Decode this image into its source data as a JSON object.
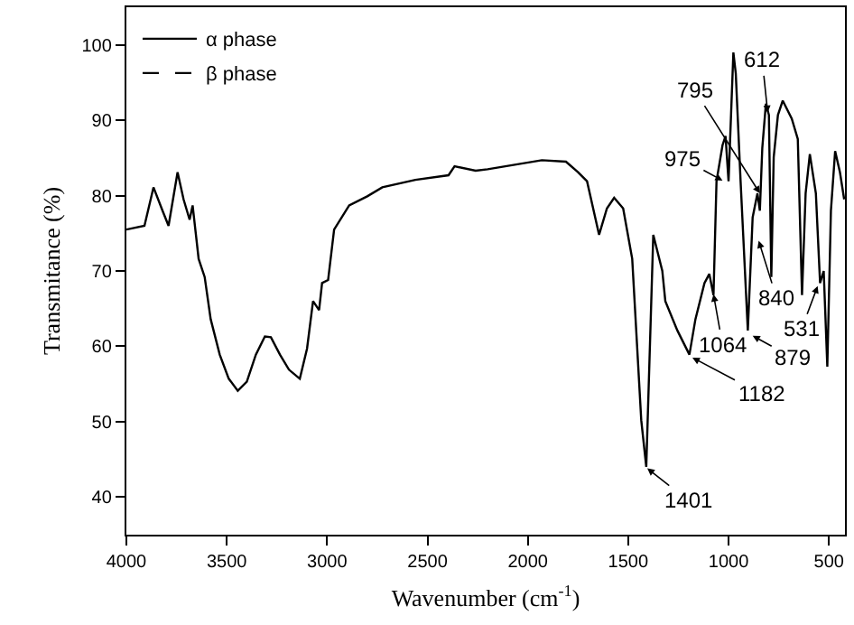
{
  "chart_data": {
    "type": "line",
    "xlabel": "Wavenumber (cm$^{-1}$)",
    "ylabel": "Transmitance (%)",
    "xlim": [
      4000,
      420
    ],
    "ylim": [
      35,
      105
    ],
    "xticks": [
      4000,
      3500,
      3000,
      2500,
      2000,
      1500,
      1000,
      500
    ],
    "yticks": [
      40,
      50,
      60,
      70,
      80,
      90,
      100
    ],
    "legend": "top left",
    "marker": "none",
    "x": [
      4000,
      3910,
      3865,
      3820,
      3790,
      3745,
      3715,
      3685,
      3670,
      3640,
      3610,
      3580,
      3535,
      3490,
      3445,
      3400,
      3355,
      3310,
      3280,
      3235,
      3190,
      3136,
      3100,
      3070,
      3040,
      3025,
      2995,
      2965,
      2890,
      2800,
      2725,
      2560,
      2395,
      2365,
      2260,
      2200,
      1930,
      1810,
      1750,
      1705,
      1645,
      1606,
      1570,
      1525,
      1480,
      1435,
      1410,
      1375,
      1330,
      1315,
      1255,
      1195,
      1165,
      1120,
      1096,
      1075,
      1060,
      1030,
      1015,
      1000,
      976,
      964,
      940,
      904,
      880,
      856,
      844,
      832,
      814,
      799,
      787,
      775,
      754,
      730,
      685,
      655,
      634,
      616,
      595,
      565,
      544,
      526,
      508,
      490,
      469,
      445,
      424
    ],
    "series": [
      {
        "name": "α phase",
        "color": "#000000",
        "line_style": "solid",
        "values": [
          75.5,
          76,
          81.1,
          78,
          76,
          83.1,
          79.5,
          76.8,
          78.7,
          71.6,
          69.2,
          63.6,
          58.9,
          55.7,
          54.1,
          55.3,
          58.9,
          61.3,
          61.2,
          58.9,
          56.9,
          55.7,
          59.7,
          66,
          64.8,
          68.4,
          68.8,
          75.5,
          78.7,
          79.9,
          81.1,
          82.1,
          82.7,
          83.9,
          83.3,
          83.5,
          84.7,
          84.5,
          83.1,
          81.9,
          74.8,
          78.3,
          79.7,
          78.3,
          71.6,
          50.2,
          44,
          74.8,
          70,
          66,
          62.1,
          58.9,
          63.6,
          68.4,
          69.6,
          66.8,
          81.9,
          86.7,
          87.9,
          81.9,
          99,
          96.2,
          81.9,
          62.1,
          77.1,
          80.3,
          78,
          86.3,
          92.2,
          90.7,
          69.2,
          85.1,
          90.7,
          92.6,
          90.2,
          87.5,
          66.8,
          80.3,
          85.5,
          80.3,
          68.4,
          70,
          57.3,
          78,
          85.9,
          83.1,
          79.5
        ]
      },
      {
        "name": "β phase",
        "color": "#000000",
        "line_style": "dashed",
        "values": [
          null,
          null,
          null,
          null,
          null,
          null,
          null,
          null,
          null,
          null,
          null,
          null,
          null,
          null,
          null,
          null,
          null,
          null,
          null,
          null,
          null,
          null,
          null,
          null,
          null,
          null,
          null,
          null,
          null,
          null,
          null,
          null,
          null,
          null,
          null,
          null,
          null,
          null,
          null,
          null,
          null,
          null,
          null,
          null,
          null,
          null,
          null,
          null,
          null,
          null,
          null,
          null,
          null,
          null,
          null,
          null,
          null,
          null,
          null,
          null,
          null,
          null,
          null,
          null,
          null,
          null,
          null,
          null,
          null,
          null,
          null,
          null,
          null,
          null,
          null,
          null,
          null,
          null,
          null,
          null,
          null,
          null,
          null,
          null,
          null,
          null,
          null
        ]
      }
    ],
    "annotations": [
      {
        "text": "1401",
        "x": 1405,
        "y": 43.8
      },
      {
        "text": "1182",
        "x": 1180,
        "y": 58.5
      },
      {
        "text": "1064",
        "x": 1075,
        "y": 66.9
      },
      {
        "text": "975",
        "x": 1030,
        "y": 82
      },
      {
        "text": "795",
        "x": 844,
        "y": 80.3
      },
      {
        "text": "612",
        "x": 805,
        "y": 91
      },
      {
        "text": "840",
        "x": 850,
        "y": 74
      },
      {
        "text": "879",
        "x": 880,
        "y": 61.4
      },
      {
        "text": "531",
        "x": 556,
        "y": 68
      }
    ]
  }
}
